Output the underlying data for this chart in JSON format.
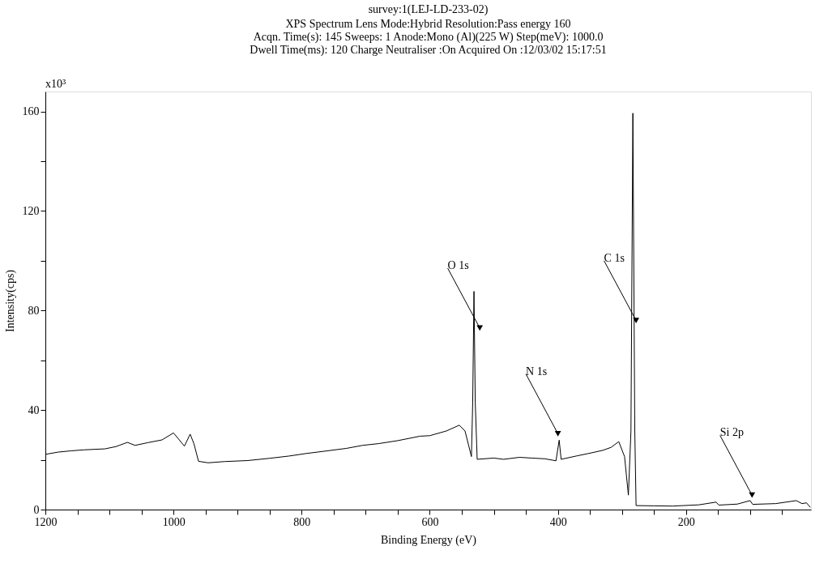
{
  "chart_data": {
    "type": "line",
    "title": "survey:1(LEJ-LD-233-02)",
    "subtitle": [
      "XPS     Spectrum    Lens Mode:Hybrid   Resolution:Pass energy 160",
      "Acqn. Time(s): 145        Sweeps: 1        Anode:Mono (Al)(225 W)   Step(meV): 1000.0",
      "Dwell Time(ms): 120        Charge Neutraliser :On   Acquired On :12/03/02 15:17:51"
    ],
    "xlabel": "Binding Energy (eV)",
    "ylabel": "Intensity(cps)",
    "x": [
      1200,
      1180,
      1160,
      1140,
      1107,
      1090,
      1072,
      1060,
      1040,
      1018,
      1000,
      983,
      974,
      968,
      961,
      946,
      920,
      884,
      850,
      820,
      794,
      760,
      730,
      705,
      680,
      650,
      615,
      600,
      574,
      554,
      545,
      535,
      533,
      531,
      529,
      526,
      500,
      485,
      460,
      441,
      420,
      403,
      398,
      395,
      370,
      353,
      330,
      317,
      305,
      296,
      290,
      286,
      283,
      280,
      278,
      250,
      221,
      180,
      153,
      149,
      120,
      100,
      96,
      60,
      28,
      19,
      12,
      6
    ],
    "series": [
      {
        "color": "#000000",
        "values": [
          22.2,
          23.1,
          23.6,
          24.0,
          24.4,
          25.3,
          27.0,
          25.8,
          26.9,
          28.0,
          30.8,
          25.5,
          30.3,
          26.4,
          19.4,
          18.8,
          19.3,
          19.7,
          20.6,
          21.5,
          22.5,
          23.6,
          24.6,
          25.8,
          26.5,
          27.7,
          29.5,
          29.7,
          31.6,
          33.9,
          31.6,
          21.3,
          43,
          87.7,
          43,
          20.2,
          20.7,
          20.2,
          21.0,
          20.7,
          20.4,
          19.6,
          27.9,
          20.2,
          21.6,
          22.5,
          23.8,
          25.0,
          27.3,
          21.3,
          5.8,
          31.6,
          159.3,
          31.6,
          1.6,
          1.5,
          1.4,
          1.9,
          3.0,
          1.8,
          2.2,
          3.6,
          2.1,
          2.4,
          3.6,
          2.4,
          2.7,
          0.9
        ]
      }
    ],
    "xlim": [
      1200,
      5
    ],
    "ylim": [
      0,
      168
    ],
    "xticks": [
      1200,
      {
        "value": 1150,
        "label": null
      },
      1000,
      {
        "value": 1100,
        "label": null
      },
      {
        "value": 1050,
        "label": null
      },
      {
        "value": 950,
        "label": null
      },
      {
        "value": 900,
        "label": null
      },
      {
        "value": 850,
        "label": null
      },
      800,
      {
        "value": 750,
        "label": null
      },
      {
        "value": 700,
        "label": null
      },
      {
        "value": 650,
        "label": null
      },
      600,
      {
        "value": 550,
        "label": null
      },
      {
        "value": 500,
        "label": null
      },
      {
        "value": 450,
        "label": null
      },
      400,
      {
        "value": 350,
        "label": null
      },
      {
        "value": 300,
        "label": null
      },
      {
        "value": 250,
        "label": null
      },
      200,
      {
        "value": 150,
        "label": null
      },
      {
        "value": 100,
        "label": null
      },
      {
        "value": 50,
        "label": null
      }
    ],
    "yticks": [
      0,
      {
        "value": 20,
        "label": null
      },
      40,
      {
        "value": 60,
        "label": null
      },
      80,
      {
        "value": 100,
        "label": null
      },
      120,
      {
        "value": 140,
        "label": null
      },
      160
    ],
    "annotations": [
      "x10³",
      {
        "text": "O 1s",
        "x": 522,
        "y": 73
      },
      {
        "text": "N 1s",
        "x": 400,
        "y": 30.5
      },
      {
        "text": "C 1s",
        "x": 278,
        "y": 76
      },
      {
        "text": "Si 2p",
        "x": 97,
        "y": 5.8
      }
    ],
    "grid": false,
    "marker": "none",
    "line_style": "solid"
  }
}
